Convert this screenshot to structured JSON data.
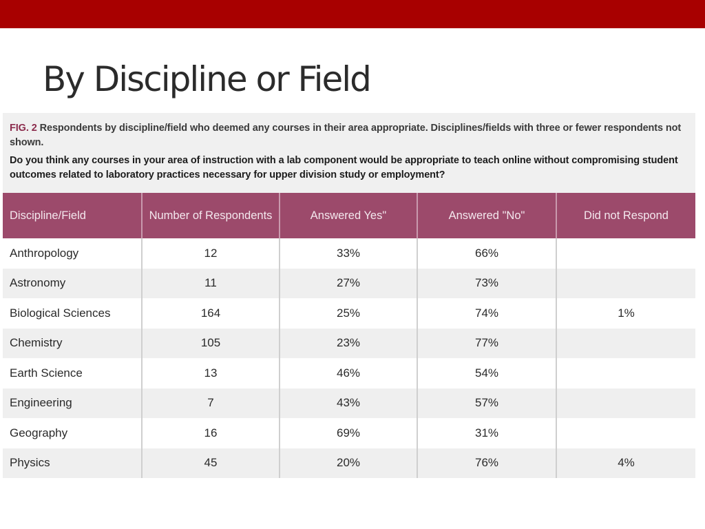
{
  "slide": {
    "title": "By Discipline or Field",
    "accent_color": "#a80000"
  },
  "figure": {
    "label": "FIG. 2",
    "caption": "Respondents by discipline/field who deemed any courses in their area appropriate. Disciplines/fields with three or fewer respondents not shown.",
    "question": "Do you think any courses in your area of instruction with a lab component would be appropriate to teach online without compromising student outcomes related to laboratory practices necessary for upper division study or employment?",
    "header_color": "#9c4a6b",
    "table": {
      "columns": [
        "Discipline/Field",
        "Number of Respondents",
        "Answered Yes\"",
        "Answered \"No\"",
        "Did not Respond"
      ],
      "rows": [
        [
          "Anthropology",
          "12",
          "33%",
          "66%",
          ""
        ],
        [
          "Astronomy",
          "11",
          "27%",
          "73%",
          ""
        ],
        [
          "Biological Sciences",
          "164",
          "25%",
          "74%",
          "1%"
        ],
        [
          "Chemistry",
          "105",
          "23%",
          "77%",
          ""
        ],
        [
          "Earth Science",
          "13",
          "46%",
          "54%",
          ""
        ],
        [
          "Engineering",
          "7",
          "43%",
          "57%",
          ""
        ],
        [
          "Geography",
          "16",
          "69%",
          "31%",
          ""
        ],
        [
          "Physics",
          "45",
          "20%",
          "76%",
          "4%"
        ]
      ]
    }
  }
}
